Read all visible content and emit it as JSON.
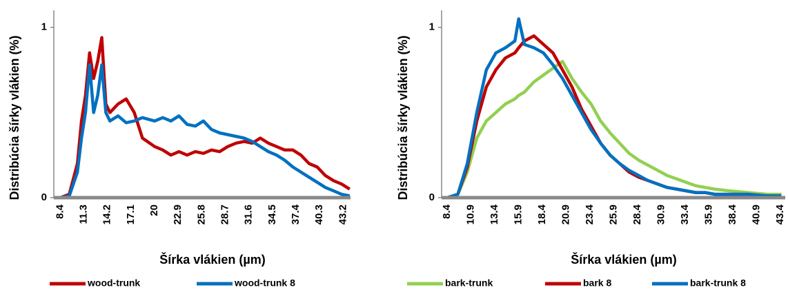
{
  "chart_data": [
    {
      "type": "line",
      "ylabel": "Distribúcia šírky vlákien (%)",
      "xlabel": "Šírka vlákien (µm)",
      "x": [
        8.4,
        9.5,
        10.5,
        11,
        11.5,
        12,
        12.5,
        13,
        13.5,
        14,
        14.5,
        15.5,
        16.5,
        17.5,
        18.5,
        20,
        21,
        22,
        23,
        24,
        25,
        26,
        27,
        28,
        29,
        30,
        31,
        32,
        33,
        34,
        35,
        36,
        37,
        38,
        39,
        40,
        41,
        42,
        43,
        44
      ],
      "series": [
        {
          "name": "wood-trunk",
          "color": "#c00000",
          "values": [
            0,
            0.02,
            0.2,
            0.45,
            0.6,
            0.85,
            0.7,
            0.8,
            0.94,
            0.55,
            0.5,
            0.55,
            0.58,
            0.5,
            0.35,
            0.3,
            0.28,
            0.25,
            0.27,
            0.25,
            0.27,
            0.26,
            0.28,
            0.27,
            0.3,
            0.32,
            0.33,
            0.32,
            0.35,
            0.32,
            0.3,
            0.28,
            0.28,
            0.25,
            0.2,
            0.18,
            0.13,
            0.1,
            0.08,
            0.05
          ]
        },
        {
          "name": "wood-trunk 8",
          "color": "#0070c0",
          "values": [
            0,
            0.01,
            0.15,
            0.35,
            0.5,
            0.78,
            0.5,
            0.6,
            0.78,
            0.5,
            0.45,
            0.48,
            0.44,
            0.45,
            0.47,
            0.45,
            0.47,
            0.45,
            0.48,
            0.43,
            0.42,
            0.45,
            0.4,
            0.38,
            0.37,
            0.36,
            0.35,
            0.33,
            0.3,
            0.27,
            0.25,
            0.22,
            0.18,
            0.15,
            0.12,
            0.09,
            0.06,
            0.04,
            0.02,
            0.01
          ]
        }
      ],
      "xlim": [
        7.6,
        44.1
      ],
      "xticks": [
        8.4,
        11.3,
        14.2,
        17.1,
        20,
        22.9,
        25.8,
        28.7,
        31.6,
        34.5,
        37.4,
        40.3,
        43.2
      ],
      "ylim": [
        0,
        1.1
      ],
      "yticks": [
        0,
        1
      ],
      "legend": "bottom"
    },
    {
      "type": "line",
      "ylabel": "Distribúcia šírky vlákien (%)",
      "xlabel": "Šírka vlákien (µm)",
      "x": [
        8.4,
        9.5,
        10.5,
        11.5,
        12.5,
        13.5,
        14.5,
        15.5,
        15.9,
        16.5,
        17.5,
        18.5,
        19.5,
        20.5,
        21.5,
        22.5,
        23.5,
        24.5,
        25.5,
        26.5,
        27.5,
        28.5,
        29.5,
        30.5,
        31.5,
        32.5,
        33.5,
        34.5,
        35.5,
        36.5,
        38,
        40,
        42,
        43.5
      ],
      "series": [
        {
          "name": "bark-trunk",
          "color": "#92d050",
          "values": [
            0,
            0.02,
            0.15,
            0.35,
            0.45,
            0.5,
            0.55,
            0.58,
            0.6,
            0.62,
            0.68,
            0.72,
            0.76,
            0.8,
            0.7,
            0.62,
            0.55,
            0.45,
            0.38,
            0.32,
            0.26,
            0.22,
            0.19,
            0.16,
            0.13,
            0.11,
            0.09,
            0.07,
            0.06,
            0.05,
            0.04,
            0.03,
            0.02,
            0.02
          ]
        },
        {
          "name": "bark 8",
          "color": "#c00000",
          "values": [
            0,
            0.02,
            0.18,
            0.45,
            0.65,
            0.75,
            0.82,
            0.85,
            0.88,
            0.92,
            0.95,
            0.9,
            0.85,
            0.75,
            0.65,
            0.52,
            0.42,
            0.32,
            0.25,
            0.2,
            0.15,
            0.12,
            0.1,
            0.08,
            0.06,
            0.05,
            0.04,
            0.03,
            0.03,
            0.02,
            0.02,
            0.02,
            0.01,
            0.01
          ]
        },
        {
          "name": "bark-trunk 8",
          "color": "#0070c0",
          "values": [
            0,
            0.02,
            0.2,
            0.5,
            0.75,
            0.85,
            0.88,
            0.92,
            1.05,
            0.9,
            0.88,
            0.85,
            0.78,
            0.7,
            0.6,
            0.5,
            0.4,
            0.32,
            0.25,
            0.2,
            0.16,
            0.13,
            0.1,
            0.08,
            0.06,
            0.05,
            0.04,
            0.03,
            0.03,
            0.02,
            0.02,
            0.02,
            0.01,
            0.01
          ]
        }
      ],
      "xlim": [
        7.8,
        43.9
      ],
      "xticks": [
        8.4,
        10.9,
        13.4,
        15.9,
        18.4,
        20.9,
        23.4,
        25.9,
        28.4,
        30.9,
        33.4,
        35.9,
        38.4,
        40.9,
        43.4
      ],
      "ylim": [
        0,
        1.1
      ],
      "yticks": [
        0,
        1
      ],
      "legend": "bottom"
    }
  ]
}
